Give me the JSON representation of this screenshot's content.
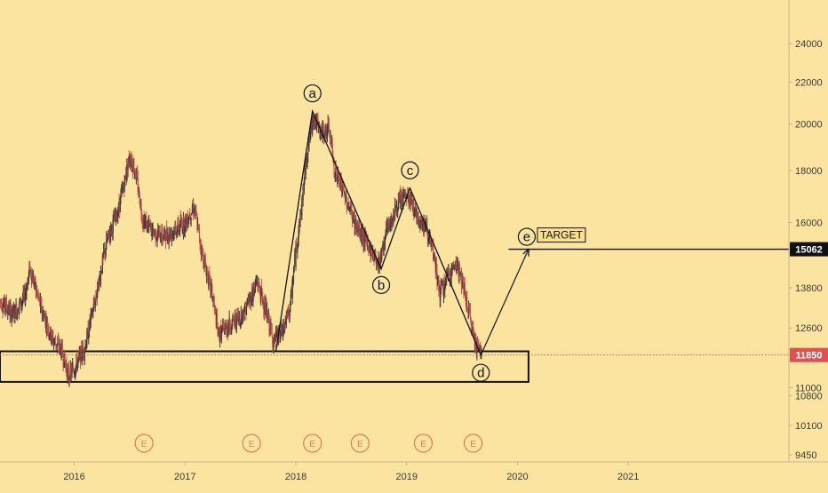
{
  "chart_data": {
    "type": "candlestick",
    "x_ticks": [
      "2016",
      "2017",
      "2018",
      "2019",
      "2020",
      "2021"
    ],
    "y_scale": "log",
    "y_ticks": [
      24000,
      22000,
      20000,
      18000,
      16000,
      13800,
      12600,
      11000,
      10800,
      10100,
      9450
    ],
    "ylim": [
      9300,
      26500
    ],
    "xlim": [
      2015.33,
      2022.45
    ],
    "current_price": 11850,
    "target_price": 15062,
    "colors": {
      "up": "#3a3a3a",
      "down": "#c0504d",
      "current_line": "#e05050",
      "target_line": "#111111",
      "earnings": "#e07a5f",
      "axis_line": "#c8b48a"
    },
    "support_zone": {
      "x_start": 2015.33,
      "x_end": 2020.1,
      "y_low": 11150,
      "y_high": 11950
    },
    "price_path": [
      [
        2015.33,
        13400
      ],
      [
        2015.45,
        13000
      ],
      [
        2015.55,
        13500
      ],
      [
        2015.6,
        14400
      ],
      [
        2015.7,
        13200
      ],
      [
        2015.8,
        12300
      ],
      [
        2015.88,
        12000
      ],
      [
        2015.95,
        11300
      ],
      [
        2016.02,
        11600
      ],
      [
        2016.1,
        12100
      ],
      [
        2016.2,
        13600
      ],
      [
        2016.3,
        15400
      ],
      [
        2016.4,
        16500
      ],
      [
        2016.45,
        17500
      ],
      [
        2016.5,
        18600
      ],
      [
        2016.55,
        18000
      ],
      [
        2016.62,
        16100
      ],
      [
        2016.7,
        15700
      ],
      [
        2016.8,
        15500
      ],
      [
        2016.9,
        15700
      ],
      [
        2017.0,
        16000
      ],
      [
        2017.08,
        16600
      ],
      [
        2017.15,
        15000
      ],
      [
        2017.25,
        13500
      ],
      [
        2017.3,
        12400
      ],
      [
        2017.4,
        12700
      ],
      [
        2017.5,
        12900
      ],
      [
        2017.58,
        13400
      ],
      [
        2017.65,
        14000
      ],
      [
        2017.72,
        13200
      ],
      [
        2017.8,
        12200
      ],
      [
        2017.88,
        12500
      ],
      [
        2017.95,
        13200
      ],
      [
        2018.0,
        15000
      ],
      [
        2018.05,
        16500
      ],
      [
        2018.1,
        18700
      ],
      [
        2018.16,
        20400
      ],
      [
        2018.22,
        19600
      ],
      [
        2018.3,
        19800
      ],
      [
        2018.35,
        18000
      ],
      [
        2018.45,
        16900
      ],
      [
        2018.55,
        15800
      ],
      [
        2018.65,
        15200
      ],
      [
        2018.75,
        14600
      ],
      [
        2018.82,
        15700
      ],
      [
        2018.9,
        16500
      ],
      [
        2018.98,
        17000
      ],
      [
        2019.05,
        16700
      ],
      [
        2019.1,
        16200
      ],
      [
        2019.18,
        15800
      ],
      [
        2019.25,
        14700
      ],
      [
        2019.3,
        13600
      ],
      [
        2019.38,
        14200
      ],
      [
        2019.45,
        14600
      ],
      [
        2019.5,
        14000
      ],
      [
        2019.55,
        13200
      ],
      [
        2019.62,
        12200
      ],
      [
        2019.68,
        11850
      ]
    ],
    "wave_points": [
      {
        "label": "a",
        "x": 2018.15,
        "y": 20600
      },
      {
        "label": "b",
        "x": 2018.77,
        "y": 14400
      },
      {
        "label": "c",
        "x": 2019.03,
        "y": 17300
      },
      {
        "label": "d",
        "x": 2019.67,
        "y": 11850
      },
      {
        "label": "e",
        "x": 2020.1,
        "y": 15062
      }
    ],
    "wave_start": {
      "x": 2017.82,
      "y": 11950
    },
    "target_text": "TARGET",
    "earnings_marker": "E",
    "earnings_x": [
      2016.63,
      2017.6,
      2018.15,
      2018.58,
      2019.15,
      2019.6
    ]
  }
}
